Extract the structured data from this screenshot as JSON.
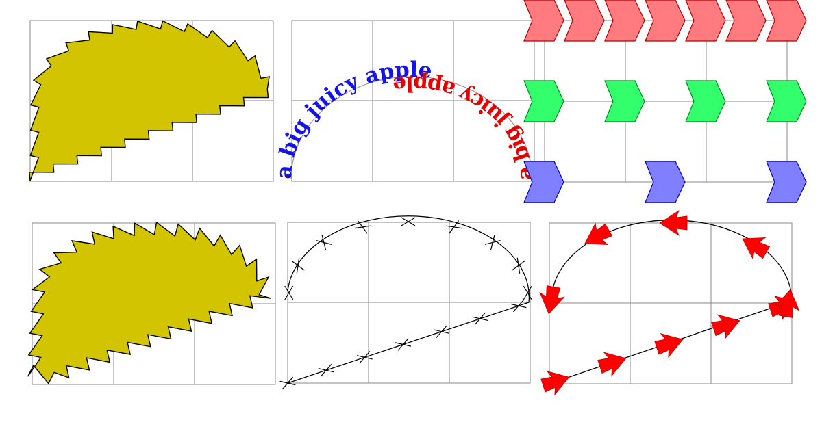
{
  "colors": {
    "blob_fill": "#d2c400",
    "grid": "#8a8a8a",
    "text_left": "#1414e6",
    "text_right": "#e60000",
    "arrow": "#ff0000",
    "chevron_red": "#ff7b7f",
    "chevron_red_stroke": "#b30000",
    "chevron_green": "#33ff6c",
    "chevron_green_stroke": "#008a1a",
    "chevron_blue": "#8080ff",
    "chevron_blue_stroke": "#0000b0"
  },
  "panels": {
    "text_path": {
      "left_text": "a big juicy apple",
      "right_text": "a big juicy apple"
    },
    "chevrons": {
      "rows": [
        {
          "name": "red",
          "count": 7
        },
        {
          "name": "green",
          "count": 4
        },
        {
          "name": "blue",
          "count": 3
        }
      ]
    },
    "markers": {
      "cross_count_curve": 9,
      "cross_count_line": 7
    },
    "arrows": {
      "arrow_count_curve": 5,
      "arrow_count_line": 5
    }
  }
}
